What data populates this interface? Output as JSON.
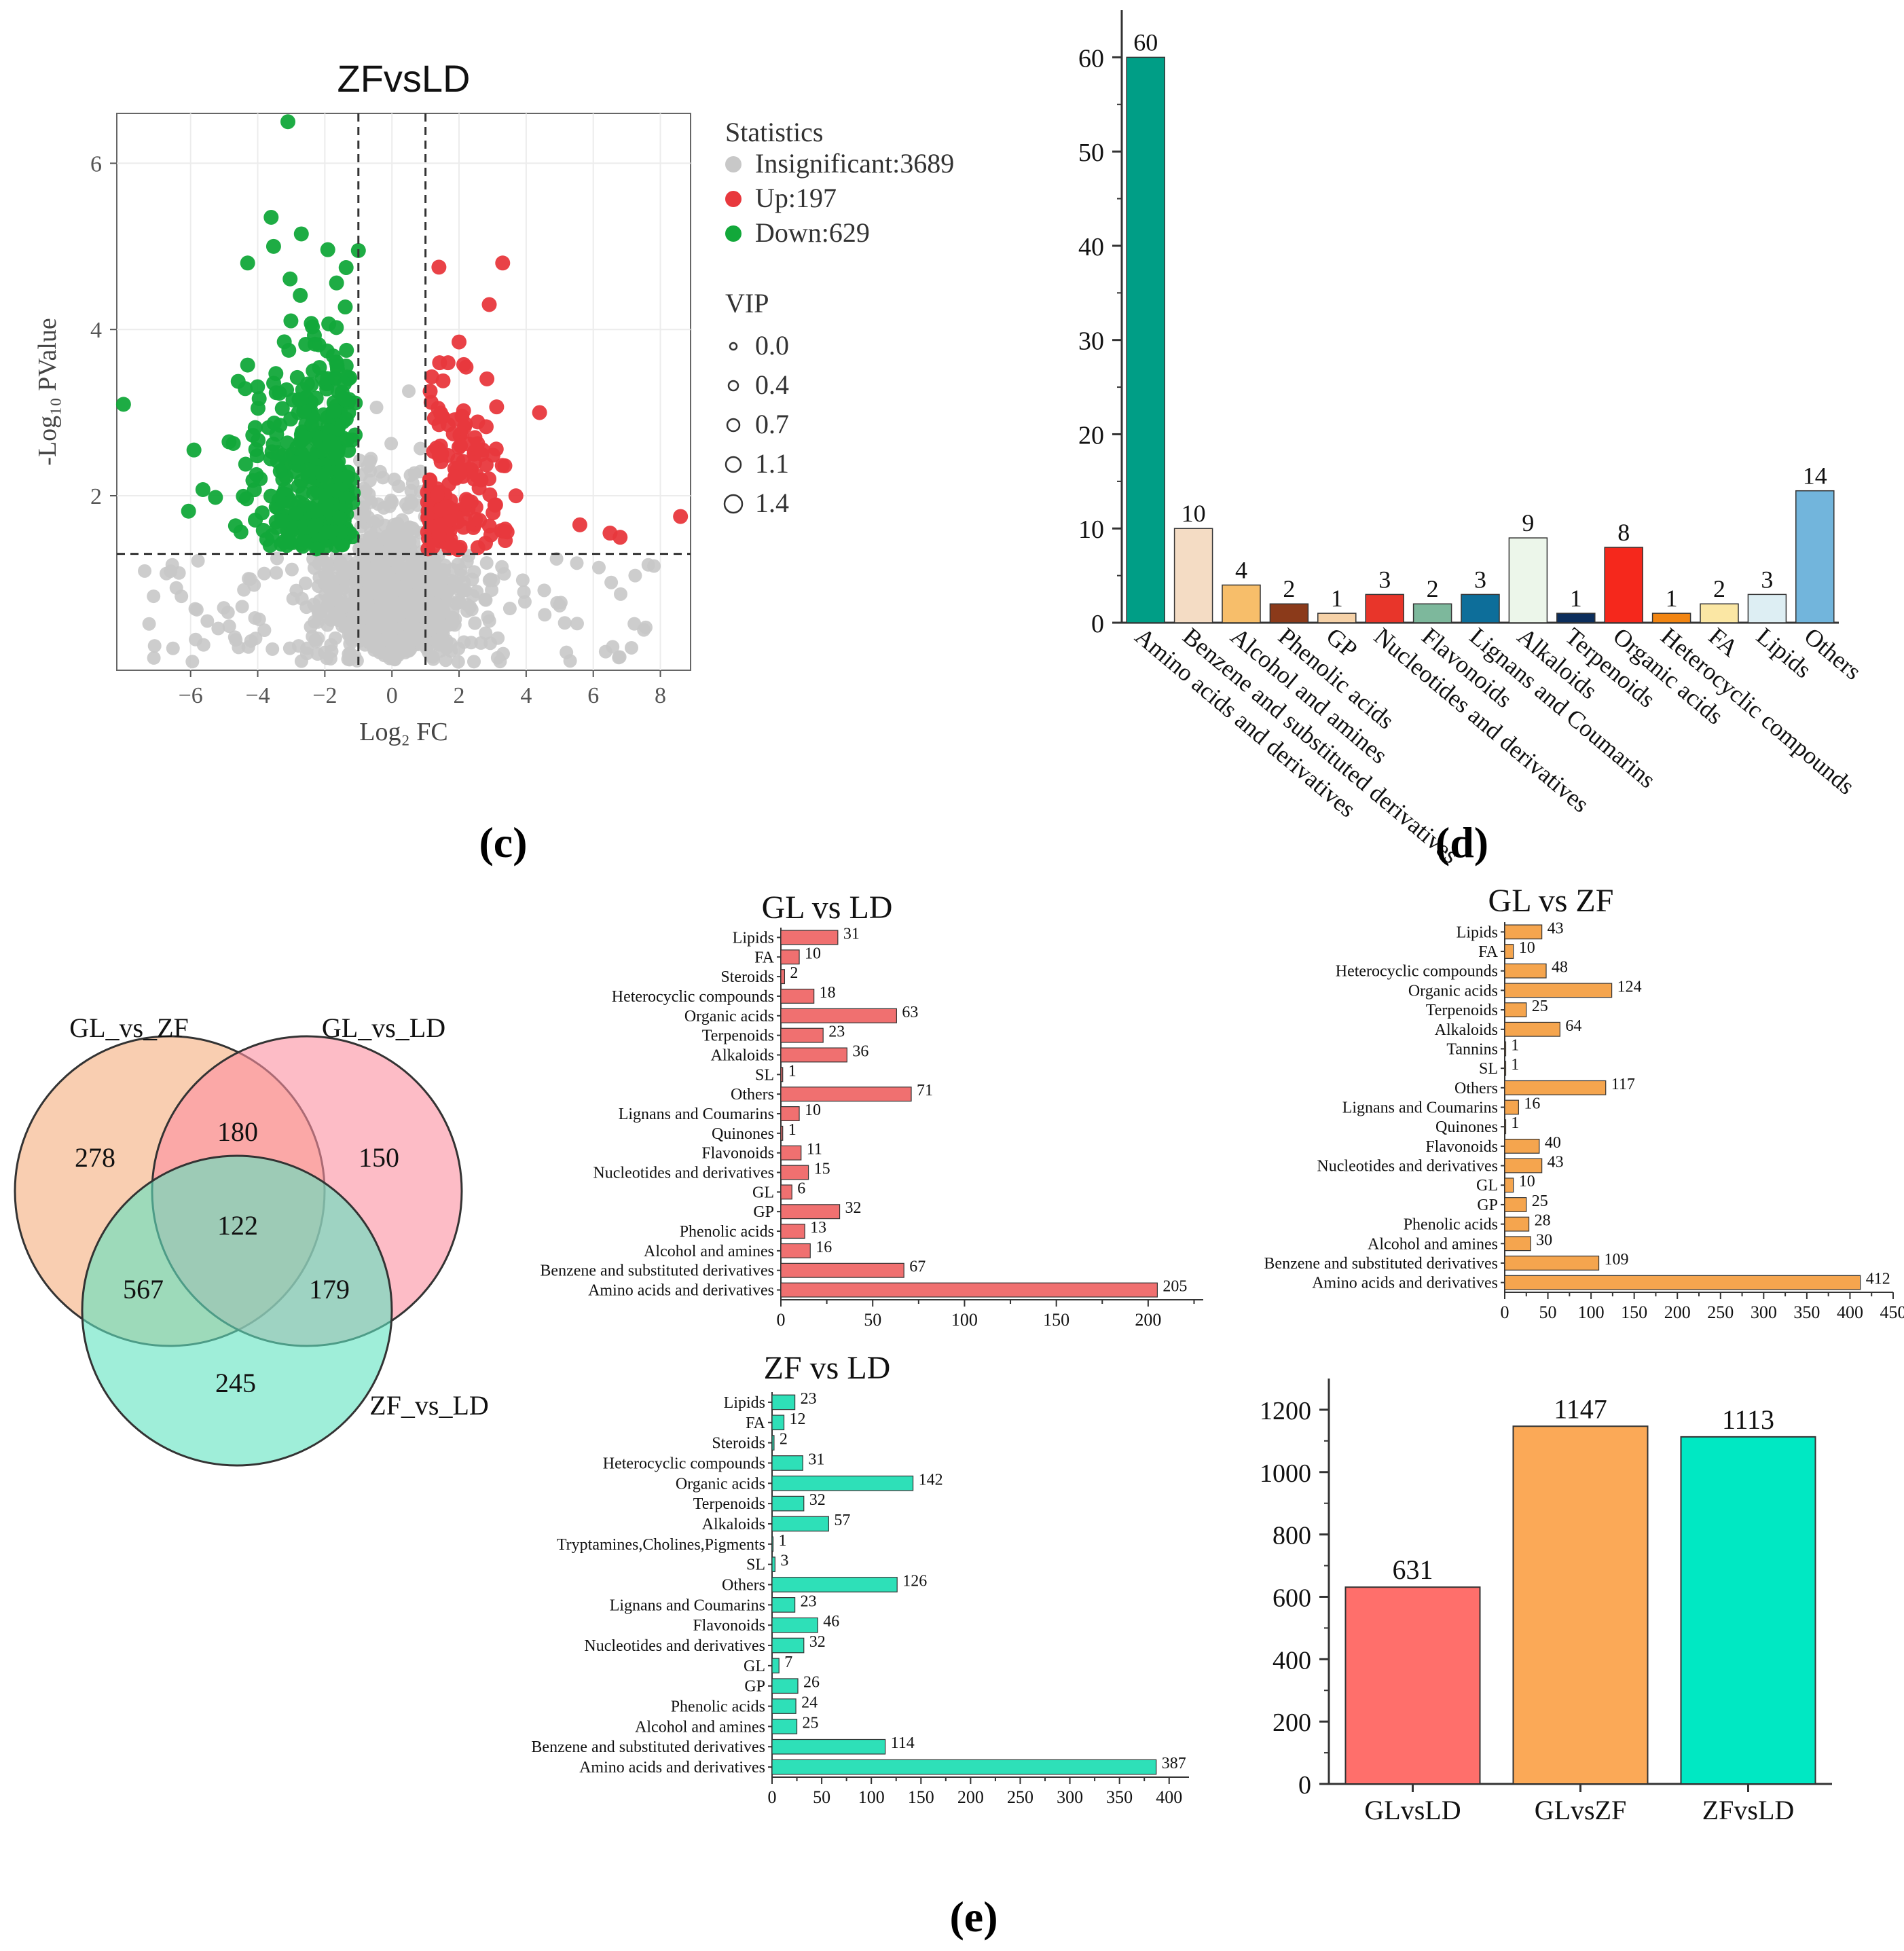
{
  "panel_labels": {
    "c": "(c)",
    "d": "(d)",
    "e": "(e)"
  },
  "colors": {
    "up": "#E8383D",
    "down": "#12A83A",
    "insig": "#C8C8C8",
    "gl_ld": "#F07070",
    "gl_zf": "#F5A54E",
    "zf_ld": "#2EE0B8",
    "totals": [
      "#FF6F6B",
      "#FBA957",
      "#00E8C3"
    ]
  },
  "chart_data": [
    {
      "type": "scatter",
      "title": "ZFvsLD",
      "xlabel": "Log₂ FC",
      "ylabel": "-Log₁₀ PValue",
      "xlim": [
        -8.2,
        8.9
      ],
      "ylim": [
        -0.1,
        6.6
      ],
      "xticks": [
        -6,
        -4,
        -2,
        0,
        2,
        4,
        6,
        8
      ],
      "yticks": [
        2,
        4,
        6
      ],
      "thresholds": {
        "fc": [
          -1,
          1
        ],
        "p": 1.3
      },
      "legend": {
        "statistics_title": "Statistics",
        "statistics": [
          "Insignificant:3689",
          "Up:197",
          "Down:629"
        ],
        "vip_title": "VIP",
        "vip": [
          "0.0",
          "0.4",
          "0.7",
          "1.1",
          "1.4"
        ]
      },
      "notable_points": [
        {
          "group": "down",
          "x": -3.1,
          "y": 6.5
        },
        {
          "group": "down",
          "x": -8.0,
          "y": 3.1
        },
        {
          "group": "down",
          "x": -3.6,
          "y": 5.35
        },
        {
          "group": "down",
          "x": -4.3,
          "y": 4.8
        },
        {
          "group": "down",
          "x": -2.7,
          "y": 5.15
        },
        {
          "group": "down",
          "x": -5.9,
          "y": 2.55
        },
        {
          "group": "down",
          "x": -1.0,
          "y": 4.95
        },
        {
          "group": "up",
          "x": 3.3,
          "y": 4.8
        },
        {
          "group": "up",
          "x": 1.4,
          "y": 4.75
        },
        {
          "group": "up",
          "x": 2.9,
          "y": 4.3
        },
        {
          "group": "up",
          "x": 2.0,
          "y": 3.85
        },
        {
          "group": "up",
          "x": 8.6,
          "y": 1.75
        },
        {
          "group": "up",
          "x": 6.8,
          "y": 1.5
        },
        {
          "group": "up",
          "x": 6.5,
          "y": 1.55
        },
        {
          "group": "up",
          "x": 5.6,
          "y": 1.65
        },
        {
          "group": "up",
          "x": 4.4,
          "y": 3.0
        }
      ]
    },
    {
      "type": "bar",
      "categories": [
        "Amino acids and derivatives",
        "Benzene and substituted derivatives",
        "Alcohol and amines",
        "Phenolic acids",
        "GP",
        "Nucleotides and derivatives",
        "Flavonoids",
        "Lignans and Coumarins",
        "Alkaloids",
        "Terpenoids",
        "Organic acids",
        "Heterocyclic compounds",
        "FA",
        "Lipids",
        "Others"
      ],
      "values": [
        60,
        10,
        4,
        2,
        1,
        3,
        2,
        3,
        9,
        1,
        8,
        1,
        2,
        3,
        14
      ],
      "colors": [
        "#009E86",
        "#F4DCC4",
        "#F7BE6A",
        "#8B3A1A",
        "#F6D2A8",
        "#E8352A",
        "#7DB89C",
        "#0D6E9A",
        "#ECF6EA",
        "#0C2E5C",
        "#F5281C",
        "#F28512",
        "#FBE7A4",
        "#DDEEF3",
        "#72B5DC"
      ],
      "ylim": [
        0,
        65
      ],
      "yticks": [
        0,
        10,
        20,
        30,
        40,
        50,
        60
      ]
    },
    {
      "type": "table",
      "title": "Venn diagram",
      "sets": [
        "GL_vs_ZF",
        "GL_vs_LD",
        "ZF_vs_LD"
      ],
      "regions": {
        "gl_zf_only": "278",
        "gl_ld_only": "150",
        "zf_ld_only": "245",
        "gl_zf_and_gl_ld": "180",
        "gl_zf_and_zf_ld": "567",
        "gl_ld_and_zf_ld": "179",
        "all_three": "122"
      }
    },
    {
      "type": "bar",
      "orientation": "horizontal",
      "title": "GL vs LD",
      "categories": [
        "Lipids",
        "FA",
        "Steroids",
        "Heterocyclic compounds",
        "Organic acids",
        "Terpenoids",
        "Alkaloids",
        "SL",
        "Others",
        "Lignans and Coumarins",
        "Quinones",
        "Flavonoids",
        "Nucleotides and derivatives",
        "GL",
        "GP",
        "Phenolic acids",
        "Alcohol and amines",
        "Benzene and substituted derivatives",
        "Amino acids and derivatives"
      ],
      "values": [
        31,
        10,
        2,
        18,
        63,
        23,
        36,
        1,
        71,
        10,
        1,
        11,
        15,
        6,
        32,
        13,
        16,
        67,
        205
      ],
      "xlim": [
        0,
        230
      ],
      "xticks": [
        0,
        50,
        100,
        150,
        200
      ]
    },
    {
      "type": "bar",
      "orientation": "horizontal",
      "title": "GL vs ZF",
      "categories": [
        "Lipids",
        "FA",
        "Heterocyclic compounds",
        "Organic acids",
        "Terpenoids",
        "Alkaloids",
        "Tannins",
        "SL",
        "Others",
        "Lignans and Coumarins",
        "Quinones",
        "Flavonoids",
        "Nucleotides and derivatives",
        "GL",
        "GP",
        "Phenolic acids",
        "Alcohol and amines",
        "Benzene and substituted derivatives",
        "Amino acids and derivatives"
      ],
      "values": [
        43,
        10,
        48,
        124,
        25,
        64,
        1,
        1,
        117,
        16,
        1,
        40,
        43,
        10,
        25,
        28,
        30,
        109,
        412
      ],
      "xlim": [
        0,
        450
      ],
      "xticks": [
        0,
        50,
        100,
        150,
        200,
        250,
        300,
        350,
        400,
        450
      ]
    },
    {
      "type": "bar",
      "orientation": "horizontal",
      "title": "ZF vs LD",
      "categories": [
        "Lipids",
        "FA",
        "Steroids",
        "Heterocyclic compounds",
        "Organic acids",
        "Terpenoids",
        "Alkaloids",
        "Tryptamines,Cholines,Pigments",
        "SL",
        "Others",
        "Lignans and Coumarins",
        "Flavonoids",
        "Nucleotides and derivatives",
        "GL",
        "GP",
        "Phenolic acids",
        "Alcohol and amines",
        "Benzene and substituted derivatives",
        "Amino acids and derivatives"
      ],
      "values": [
        23,
        12,
        2,
        31,
        142,
        32,
        57,
        1,
        3,
        126,
        23,
        46,
        32,
        7,
        26,
        24,
        25,
        114,
        387
      ],
      "xlim": [
        0,
        420
      ],
      "xticks": [
        0,
        50,
        100,
        150,
        200,
        250,
        300,
        350,
        400
      ]
    },
    {
      "type": "bar",
      "categories": [
        "GLvsLD",
        "GLvsZF",
        "ZFvsLD"
      ],
      "values": [
        631,
        1147,
        1113
      ],
      "ylim": [
        0,
        1300
      ],
      "yticks": [
        0,
        200,
        400,
        600,
        800,
        1000,
        1200
      ]
    }
  ]
}
